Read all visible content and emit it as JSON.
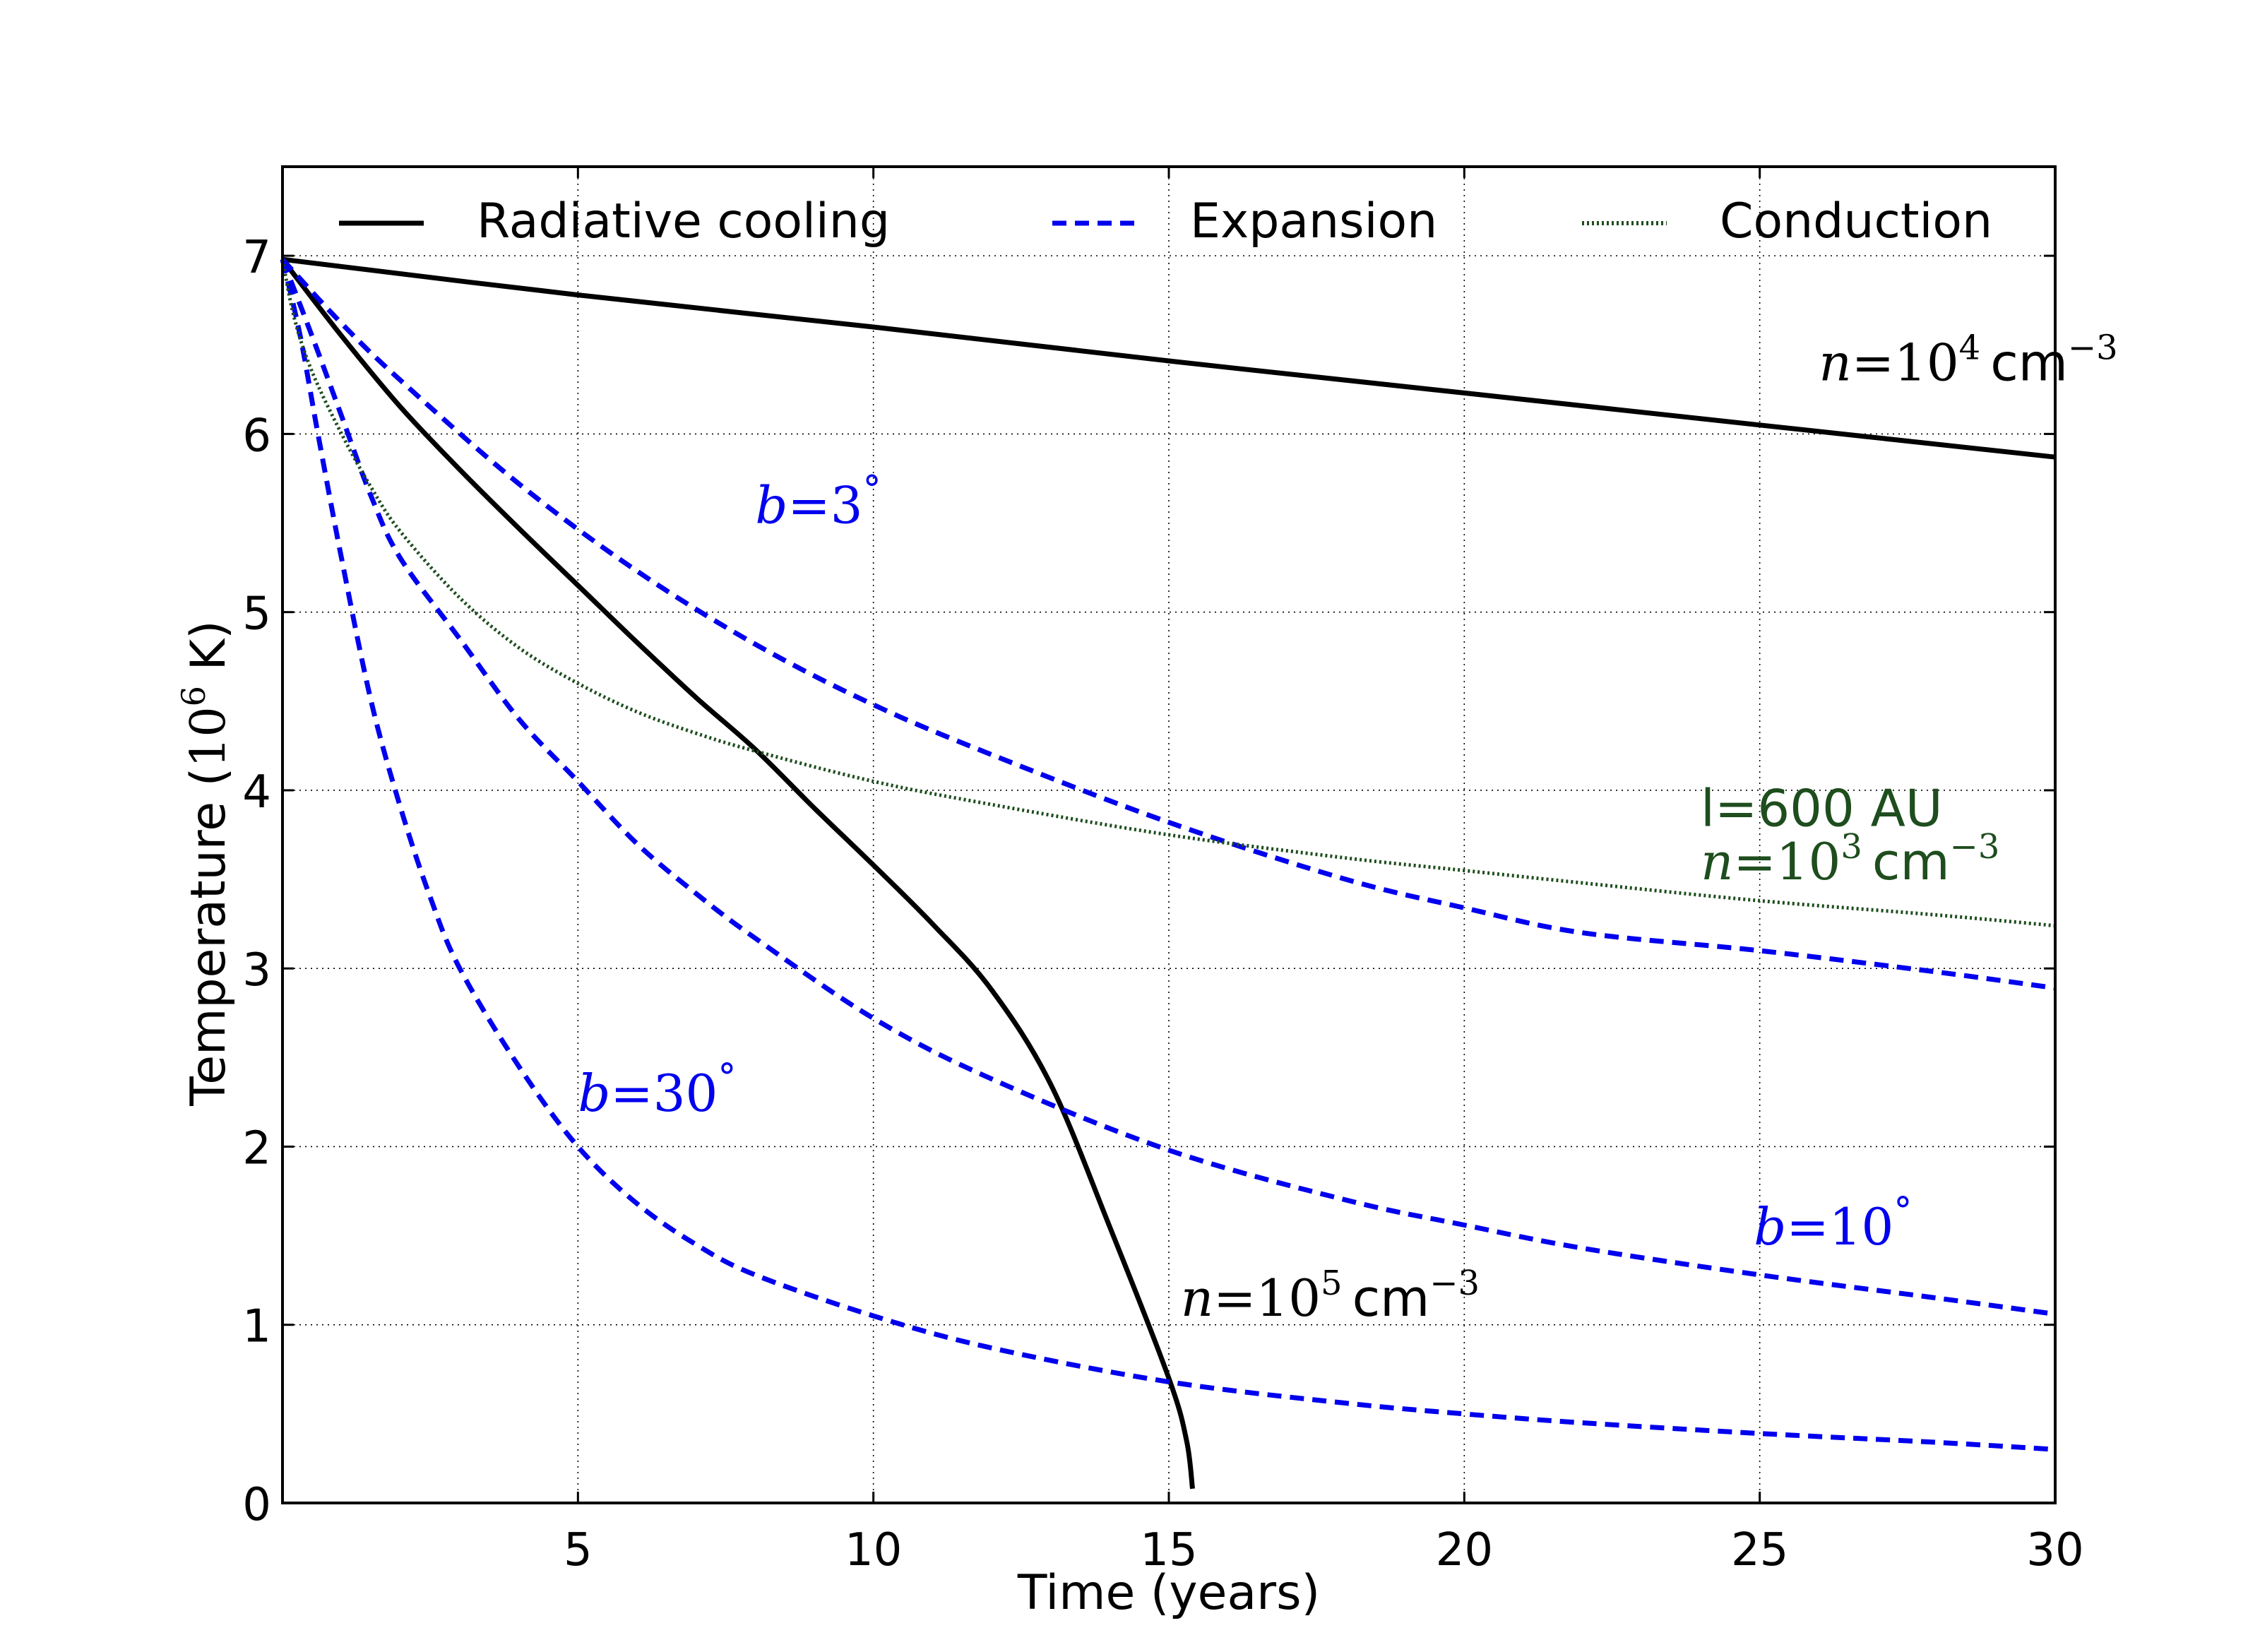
{
  "chart_data": {
    "type": "line",
    "xlabel": "Time (years)",
    "ylabel": {
      "text": "Temperature (",
      "sup_base": "10",
      "sup": "6",
      "unit": " K)"
    },
    "xlim": [
      0,
      30
    ],
    "ylim": [
      0,
      7.5
    ],
    "xticks": [
      5,
      10,
      15,
      20,
      25,
      30
    ],
    "yticks": [
      0,
      1,
      2,
      3,
      4,
      5,
      6,
      7
    ],
    "grid": true,
    "legend_position": "top",
    "legend": [
      {
        "label": "Radiative cooling",
        "color": "#000000",
        "style": "solid"
      },
      {
        "label": "Expansion",
        "color": "#0000ee",
        "style": "dashed"
      },
      {
        "label": "Conduction",
        "color": "#1e4d1e",
        "style": "dotted"
      }
    ],
    "series": [
      {
        "group": "Radiative cooling",
        "color": "#000000",
        "style": "solid",
        "x": [
          0,
          5,
          10,
          15,
          20,
          25,
          30
        ],
        "y": [
          6.98,
          6.78,
          6.6,
          6.41,
          6.23,
          6.05,
          5.87
        ]
      },
      {
        "group": "Radiative cooling",
        "color": "#000000",
        "style": "solid",
        "x": [
          0,
          1,
          2,
          3,
          4,
          5,
          6,
          7,
          8,
          9,
          10,
          11,
          12,
          13,
          14,
          15,
          15.3,
          15.4
        ],
        "y": [
          6.98,
          6.55,
          6.15,
          5.8,
          5.47,
          5.15,
          4.83,
          4.52,
          4.23,
          3.9,
          3.58,
          3.25,
          2.88,
          2.35,
          1.55,
          0.7,
          0.35,
          0.08
        ]
      },
      {
        "group": "Expansion",
        "color": "#0000ee",
        "style": "dashed",
        "x": [
          0,
          1,
          2,
          4,
          6,
          8,
          10,
          12,
          15,
          18,
          20,
          22,
          25,
          28,
          30
        ],
        "y": [
          6.98,
          6.62,
          6.3,
          5.72,
          5.23,
          4.82,
          4.48,
          4.2,
          3.82,
          3.5,
          3.34,
          3.2,
          3.1,
          2.98,
          2.89
        ]
      },
      {
        "group": "Expansion",
        "color": "#0000ee",
        "style": "dashed",
        "x": [
          0,
          0.5,
          1,
          1.5,
          2,
          3,
          4,
          5,
          6,
          7,
          8,
          10,
          12,
          15,
          18,
          20,
          22,
          25,
          28,
          30
        ],
        "y": [
          6.98,
          6.55,
          6.1,
          5.65,
          5.3,
          4.85,
          4.4,
          4.05,
          3.7,
          3.42,
          3.17,
          2.72,
          2.38,
          1.98,
          1.7,
          1.56,
          1.43,
          1.28,
          1.15,
          1.06
        ]
      },
      {
        "group": "Expansion",
        "color": "#0000ee",
        "style": "dashed",
        "x": [
          0,
          0.3,
          0.6,
          1,
          1.5,
          2,
          2.5,
          3,
          4,
          5,
          6,
          7,
          8,
          10,
          12,
          15,
          18,
          20,
          22,
          25,
          28,
          30
        ],
        "y": [
          6.98,
          6.55,
          6.0,
          5.3,
          4.5,
          3.9,
          3.4,
          3.0,
          2.45,
          2.0,
          1.68,
          1.45,
          1.28,
          1.05,
          0.87,
          0.68,
          0.56,
          0.5,
          0.45,
          0.39,
          0.34,
          0.3
        ]
      },
      {
        "group": "Conduction",
        "color": "#1e4d1e",
        "style": "dotted",
        "x": [
          0,
          0.2,
          0.5,
          1,
          1.5,
          2,
          3,
          4,
          5,
          6,
          7,
          8,
          10,
          12,
          15,
          18,
          20,
          22,
          25,
          28,
          30
        ],
        "y": [
          6.98,
          6.65,
          6.35,
          6.0,
          5.7,
          5.45,
          5.08,
          4.8,
          4.6,
          4.44,
          4.32,
          4.22,
          4.05,
          3.92,
          3.75,
          3.62,
          3.55,
          3.48,
          3.38,
          3.3,
          3.24
        ]
      }
    ],
    "annotations": {
      "n1e4": {
        "lhs": "n",
        "eq": "=",
        "base": "10",
        "exp": "4",
        "unit": "cm",
        "unit_exp": "−3",
        "color": "#000000",
        "x": 26,
        "y": 6.3
      },
      "n1e5": {
        "lhs": "n",
        "eq": "=",
        "base": "10",
        "exp": "5",
        "unit": "cm",
        "unit_exp": "−3",
        "color": "#000000",
        "x": 15.2,
        "y": 1.05
      },
      "b3": {
        "lhs": "b",
        "eq": "=",
        "val": "3",
        "deg": "°",
        "color": "#0000ee",
        "x": 8.0,
        "y": 5.5
      },
      "b10": {
        "lhs": "b",
        "eq": "=",
        "val": "10",
        "deg": "°",
        "color": "#0000ee",
        "x": 24.9,
        "y": 1.45
      },
      "b30": {
        "lhs": "b",
        "eq": "=",
        "val": "30",
        "deg": "°",
        "color": "#0000ee",
        "x": 5.0,
        "y": 2.2
      },
      "l600": {
        "text": "l=600 AU",
        "color": "#1e4d1e",
        "x": 24.0,
        "y": 3.8
      },
      "n1e3": {
        "lhs": "n",
        "eq": "=",
        "base": "10",
        "exp": "3",
        "unit": "cm",
        "unit_exp": "−3",
        "color": "#1e4d1e",
        "x": 24.0,
        "y": 3.5
      }
    }
  }
}
